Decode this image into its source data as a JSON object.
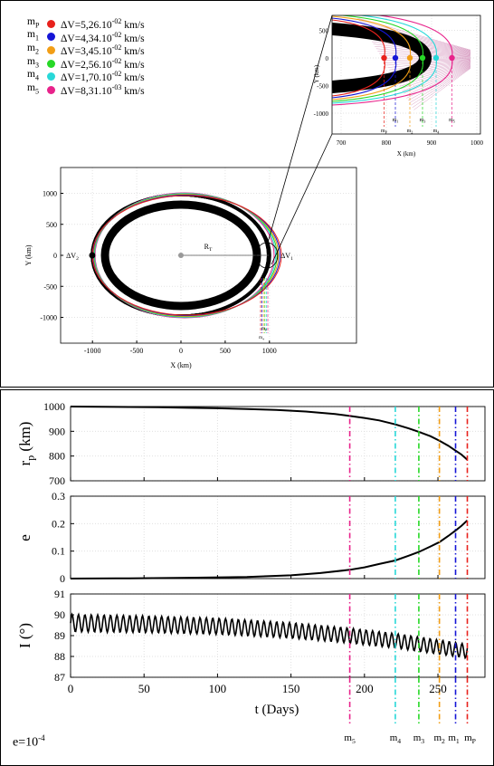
{
  "legend": {
    "items": [
      {
        "name": "m",
        "sub": "P",
        "text": "ΔV=5,26.10",
        "exp": "-02",
        "unit": " km/s",
        "color": "#e8211c"
      },
      {
        "name": "m",
        "sub": "1",
        "text": "ΔV=4,34.10",
        "exp": "-02",
        "unit": " km/s",
        "color": "#1515d6"
      },
      {
        "name": "m",
        "sub": "2",
        "text": "ΔV=3,45.10",
        "exp": "-02",
        "unit": " km/s",
        "color": "#f29e16"
      },
      {
        "name": "m",
        "sub": "3",
        "text": "ΔV=2,56.10",
        "exp": "-02",
        "unit": " km/s",
        "color": "#27d827"
      },
      {
        "name": "m",
        "sub": "4",
        "text": "ΔV=1,70.10",
        "exp": "-02",
        "unit": " km/s",
        "color": "#28d8d8"
      },
      {
        "name": "m",
        "sub": "5",
        "text": "ΔV=8,31.10",
        "exp": "-03",
        "unit": " km/s",
        "color": "#e8238b"
      }
    ]
  },
  "orbit_plot": {
    "xlabel": "X (km)",
    "ylabel": "Y (km)",
    "xticks": [
      "-1000",
      "-500",
      "0",
      "500",
      "1000"
    ],
    "yticks": [
      "1000",
      "500",
      "0",
      "-500",
      "-1000"
    ],
    "label_dv2": "ΔV",
    "label_dv2_sub": "2",
    "label_dv1": "ΔV",
    "label_dv1_sub": "1",
    "label_rt": "R",
    "label_rt_sub": "T"
  },
  "zoom_plot": {
    "xlabel": "X (km)",
    "ylabel": "Y (km)",
    "xticks": [
      "700",
      "800",
      "900",
      "1000"
    ],
    "yticks": [
      "500",
      "0",
      "-500",
      "-1000"
    ],
    "markers": [
      {
        "label": "m",
        "sub": "P",
        "x": 795,
        "color": "#e8211c"
      },
      {
        "label": "m",
        "sub": "1",
        "x": 820,
        "color": "#1515d6"
      },
      {
        "label": "m",
        "sub": "2",
        "x": 852,
        "color": "#f29e16"
      },
      {
        "label": "m",
        "sub": "3",
        "x": 880,
        "color": "#27d827"
      },
      {
        "label": "m",
        "sub": "4",
        "x": 910,
        "color": "#28d8d8"
      },
      {
        "label": "m",
        "sub": "5",
        "x": 945,
        "color": "#e8238b"
      }
    ]
  },
  "time_plots": {
    "xlabel": "t (Days)",
    "xticks": [
      "0",
      "50",
      "100",
      "150",
      "200",
      "250"
    ],
    "panels": [
      {
        "ylabel": "r",
        "ylabel_sub": "p",
        "ylabel_unit": " (km)",
        "yticks": [
          "1000",
          "900",
          "800",
          "700"
        ],
        "ylim": [
          700,
          1000
        ]
      },
      {
        "ylabel": "e",
        "yticks": [
          "0.3",
          "0.2",
          "0.1",
          "0"
        ],
        "ylim": [
          0,
          0.3
        ]
      },
      {
        "ylabel": "I (°)",
        "yticks": [
          "91",
          "90",
          "89",
          "88",
          "87"
        ],
        "ylim": [
          87,
          91
        ]
      }
    ],
    "events": [
      {
        "label": "m",
        "sub": "5",
        "t": 190,
        "color": "#e8238b"
      },
      {
        "label": "m",
        "sub": "4",
        "t": 221,
        "color": "#28d8d8"
      },
      {
        "label": "m",
        "sub": "3",
        "t": 237,
        "color": "#27d827"
      },
      {
        "label": "m",
        "sub": "2",
        "t": 251,
        "color": "#f29e16"
      },
      {
        "label": "m",
        "sub": "1",
        "t": 262,
        "color": "#1515d6"
      },
      {
        "label": "m",
        "sub": "P",
        "t": 270,
        "color": "#e8211c"
      }
    ]
  },
  "chart_data": [
    {
      "type": "line",
      "title": "",
      "xlabel": "t (Days)",
      "ylabel": "r_p (km)",
      "xlim": [
        0,
        282
      ],
      "ylim": [
        700,
        1000
      ],
      "series": [
        {
          "x": [
            0,
            20,
            40,
            60,
            80,
            100,
            120,
            140,
            160,
            180,
            190,
            200,
            210,
            221,
            230,
            237,
            245,
            251,
            257,
            262,
            266,
            270
          ],
          "y": [
            1000,
            999,
            998,
            997,
            995,
            993,
            990,
            986,
            980,
            970,
            962,
            954,
            944,
            928,
            912,
            898,
            880,
            862,
            842,
            822,
            806,
            785
          ]
        }
      ]
    },
    {
      "type": "line",
      "title": "",
      "xlabel": "t (Days)",
      "ylabel": "e",
      "xlim": [
        0,
        282
      ],
      "ylim": [
        0,
        0.3
      ],
      "series": [
        {
          "x": [
            0,
            40,
            80,
            120,
            150,
            170,
            190,
            200,
            210,
            221,
            230,
            237,
            245,
            251,
            257,
            262,
            266,
            270
          ],
          "y": [
            0,
            0.001,
            0.003,
            0.006,
            0.012,
            0.02,
            0.032,
            0.041,
            0.053,
            0.066,
            0.083,
            0.097,
            0.117,
            0.133,
            0.155,
            0.175,
            0.192,
            0.212
          ]
        }
      ]
    },
    {
      "type": "line",
      "title": "",
      "xlabel": "t (Days)",
      "ylabel": "I (°)",
      "xlim": [
        0,
        282
      ],
      "ylim": [
        87,
        91
      ],
      "series": [
        {
          "x": [
            0,
            50,
            100,
            150,
            190,
            221,
            251,
            270
          ],
          "y": [
            89.6,
            89.55,
            89.45,
            89.25,
            89.0,
            88.75,
            88.45,
            88.25
          ]
        }
      ]
    }
  ],
  "footer": {
    "e_text": "e=10",
    "e_exp": "-4"
  }
}
